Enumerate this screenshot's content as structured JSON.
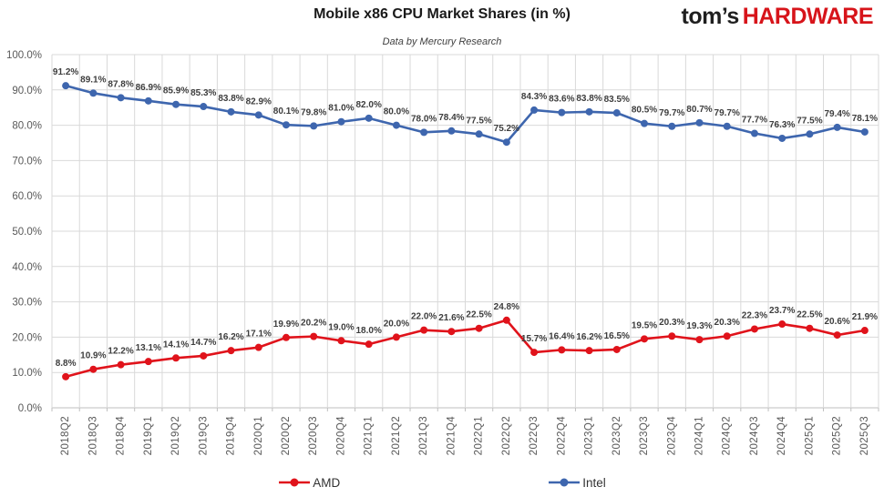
{
  "header": {
    "title": "Mobile x86 CPU Market Shares (in %)",
    "subtitle": "Data by Mercury Research",
    "logo": {
      "prefix": "tom’s",
      "suffix": "HARDWARE",
      "prefix_color": "#1f1f1f",
      "suffix_color": "#d7141a"
    }
  },
  "chart_data": {
    "type": "line",
    "title": "Mobile x86 CPU Market Shares (in %)",
    "subtitle": "Data by Mercury Research",
    "xlabel": "",
    "ylabel": "",
    "ylim": [
      0,
      100
    ],
    "ytick_step": 10,
    "yticks": [
      "0.0%",
      "10.0%",
      "20.0%",
      "30.0%",
      "40.0%",
      "50.0%",
      "60.0%",
      "70.0%",
      "80.0%",
      "90.0%",
      "100.0%"
    ],
    "grid": true,
    "legend_position": "bottom",
    "value_suffix": "%",
    "categories": [
      "2018Q2",
      "2018Q3",
      "2018Q4",
      "2019Q1",
      "2019Q2",
      "2019Q3",
      "2019Q4",
      "2020Q1",
      "2020Q2",
      "2020Q3",
      "2020Q4",
      "2021Q1",
      "2021Q2",
      "2021Q3",
      "2021Q4",
      "2022Q1",
      "2022Q2",
      "2022Q3",
      "2022Q4",
      "2023Q1",
      "2023Q2",
      "2023Q3",
      "2023Q4",
      "2024Q1",
      "2024Q2",
      "2024Q3",
      "2024Q4",
      "2025Q1",
      "2025Q2",
      "2025Q3"
    ],
    "series": [
      {
        "name": "AMD",
        "color": "#e0131b",
        "values": [
          8.8,
          10.9,
          12.2,
          13.1,
          14.1,
          14.7,
          16.2,
          17.1,
          19.9,
          20.2,
          19.0,
          18.0,
          20.0,
          22.0,
          21.6,
          22.5,
          24.8,
          15.7,
          16.4,
          16.2,
          16.5,
          19.5,
          20.3,
          19.3,
          20.3,
          22.3,
          23.7,
          22.5,
          20.6,
          21.9
        ]
      },
      {
        "name": "Intel",
        "color": "#3e66ae",
        "values": [
          91.2,
          89.1,
          87.8,
          86.9,
          85.9,
          85.3,
          83.8,
          82.9,
          80.1,
          79.8,
          81.0,
          82.0,
          80.0,
          78.0,
          78.4,
          77.5,
          75.2,
          84.3,
          83.6,
          83.8,
          83.5,
          80.5,
          79.7,
          80.7,
          79.7,
          77.7,
          76.3,
          77.5,
          79.4,
          78.1
        ]
      }
    ],
    "colors": {
      "gridline": "#d9d9d9",
      "axis": "#bfbfbf",
      "tick_label": "#595959",
      "data_label": "#3d3d3d"
    }
  }
}
